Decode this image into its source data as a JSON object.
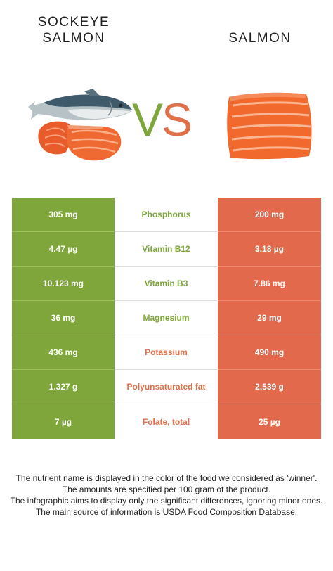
{
  "header": {
    "left_food_line1": "SOCKEYE",
    "left_food_line2": "SALMON",
    "right_food": "SALMON",
    "vs_v": "V",
    "vs_s": "S"
  },
  "colors": {
    "left": "#7ea63a",
    "right": "#e2694c"
  },
  "rows": [
    {
      "left": "305 mg",
      "name": "Phosphorus",
      "right": "200 mg",
      "winner": "left"
    },
    {
      "left": "4.47 µg",
      "name": "Vitamin B12",
      "right": "3.18 µg",
      "winner": "left"
    },
    {
      "left": "10.123 mg",
      "name": "Vitamin B3",
      "right": "7.86 mg",
      "winner": "left"
    },
    {
      "left": "36 mg",
      "name": "Magnesium",
      "right": "29 mg",
      "winner": "left"
    },
    {
      "left": "436 mg",
      "name": "Potassium",
      "right": "490 mg",
      "winner": "right"
    },
    {
      "left": "1.327 g",
      "name": "Polyunsaturated fat",
      "right": "2.539 g",
      "winner": "right"
    },
    {
      "left": "7 µg",
      "name": "Folate, total",
      "right": "25 µg",
      "winner": "right"
    }
  ],
  "footer": {
    "line1": "The nutrient name is displayed in the color of the food we considered as 'winner'.",
    "line2": "The amounts are specified per 100 gram of the product.",
    "line3": "The infographic aims to display only the significant differences, ignoring minor ones.",
    "line4": "The main source of information is USDA Food Composition Database."
  }
}
